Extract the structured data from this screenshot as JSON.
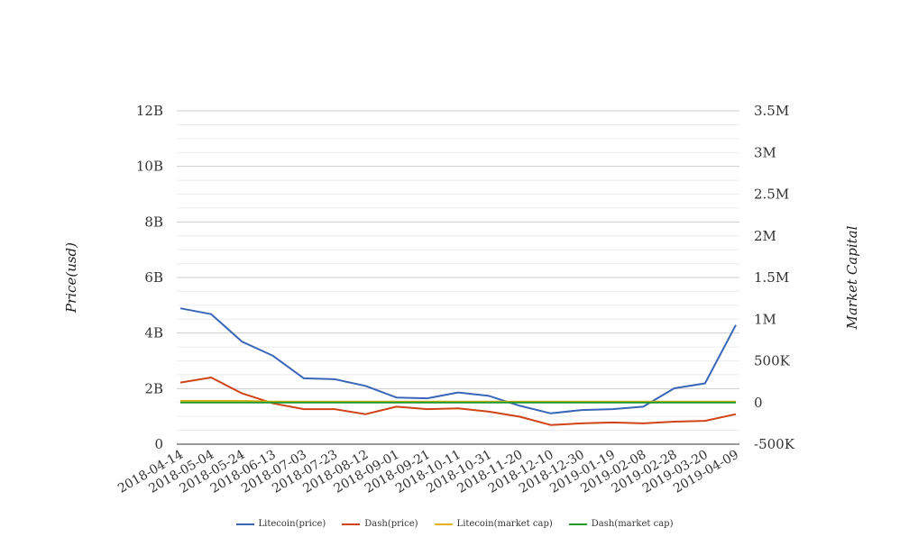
{
  "chart_data": {
    "type": "line",
    "title": "",
    "ylabel": "Price(usd)",
    "y2label": "Market Capital",
    "ylim": [
      0,
      12000000000
    ],
    "y2lim": [
      -500000,
      3500000
    ],
    "yticks": [
      "0",
      "2B",
      "4B",
      "6B",
      "8B",
      "10B",
      "12B"
    ],
    "y2ticks": [
      "-500K",
      "0",
      "500K",
      "1M",
      "1.5M",
      "2M",
      "2.5M",
      "3M",
      "3.5M"
    ],
    "x": [
      "2018-04-14",
      "2018-05-04",
      "2018-05-24",
      "2018-06-13",
      "2018-07-03",
      "2018-07-23",
      "2018-08-12",
      "2018-09-01",
      "2018-09-21",
      "2018-10-11",
      "2018-10-31",
      "2018-11-20",
      "2018-12-10",
      "2018-12-30",
      "2019-01-19",
      "2019-02-08",
      "2019-02-28",
      "2019-03-20",
      "2019-04-09"
    ],
    "legend_position": "bottom",
    "grid": true,
    "series": [
      {
        "name": "Litecoin(price)",
        "color": "#3a66b9",
        "axis": "right",
        "values": [
          1.13,
          1.06,
          0.73,
          0.56,
          0.29,
          0.28,
          0.2,
          0.06,
          0.05,
          0.12,
          0.08,
          -0.04,
          -0.13,
          -0.09,
          -0.08,
          -0.05,
          0.17,
          0.23,
          0.93
        ]
      },
      {
        "name": "Dash(price)",
        "color": "#cf4315",
        "axis": "right",
        "values": [
          0.24,
          0.3,
          0.11,
          -0.01,
          -0.08,
          -0.08,
          -0.14,
          -0.05,
          -0.08,
          -0.07,
          -0.11,
          -0.17,
          -0.27,
          -0.25,
          -0.24,
          -0.25,
          -0.23,
          -0.22,
          -0.14
        ]
      },
      {
        "name": "Litecoin(market cap)",
        "color": "#e2b314",
        "axis": "right",
        "values": [
          0.02,
          0.02,
          0.02,
          0.01,
          0.01,
          0.01,
          0.01,
          0.01,
          0.01,
          0.01,
          0.01,
          0.01,
          0.01,
          0.01,
          0.01,
          0.01,
          0.01,
          0.01,
          0.01
        ]
      },
      {
        "name": "Dash(market cap)",
        "color": "#1f9a2a",
        "axis": "right",
        "values": [
          0.0,
          0.0,
          0.0,
          0.0,
          0.0,
          0.0,
          0.0,
          0.0,
          0.0,
          0.0,
          0.0,
          0.0,
          0.0,
          0.0,
          0.0,
          0.0,
          0.0,
          0.0,
          0.0
        ]
      }
    ]
  }
}
